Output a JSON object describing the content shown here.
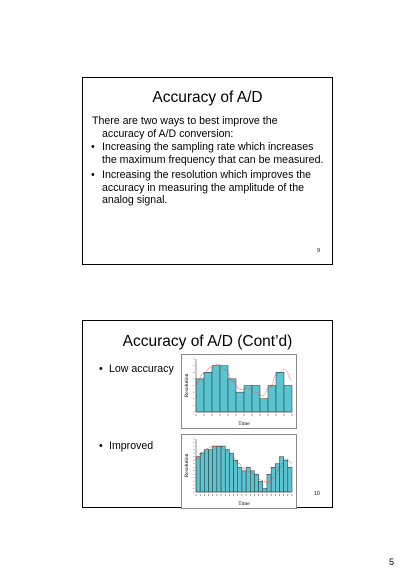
{
  "slides": [
    {
      "title": "Accuracy of A/D",
      "intro_line1": "There are two ways to best improve the",
      "intro_line2": "accuracy of A/D conversion:",
      "bullets": [
        "Increasing the sampling rate which increases the maximum frequency that can be measured.",
        "Increasing the resolution which improves the accuracy in measuring the amplitude of the analog signal."
      ],
      "number": "9"
    },
    {
      "title": "Accuracy of A/D (Cont’d)",
      "items": [
        "Low accuracy",
        "Improved"
      ],
      "number": "10"
    }
  ],
  "bullet_char": "•",
  "chart_data": [
    {
      "type": "bar",
      "xlabel": "Time",
      "ylabel": "Resolution",
      "bar_color": "#5bc4d1",
      "curve_color": "#e04040",
      "values": [
        5,
        6,
        7,
        7,
        5,
        3,
        4,
        4,
        2,
        4,
        6,
        4
      ],
      "curve": [
        4.2,
        5.8,
        6.8,
        7.2,
        6.4,
        4.6,
        3.4,
        3.6,
        3.0,
        2.4,
        3.8,
        5.8,
        6.4,
        4.8
      ],
      "ylim": [
        0,
        8
      ]
    },
    {
      "type": "bar",
      "xlabel": "Time",
      "ylabel": "Resolution",
      "bar_color": "#5bc4d1",
      "curve_color": "#e04040",
      "values": [
        10,
        11,
        12,
        12,
        13,
        13,
        13,
        12,
        11,
        9,
        7,
        6,
        7,
        6,
        5,
        3,
        1,
        5,
        7,
        8,
        10,
        9,
        7
      ],
      "curve": [
        9.5,
        11.2,
        12.4,
        13.0,
        12.8,
        11.8,
        10.2,
        8.2,
        6.6,
        5.6,
        4.6,
        3.2,
        2.6,
        4.0,
        7.0,
        9.4,
        8.2
      ],
      "ylim": [
        0,
        15
      ]
    }
  ],
  "page_number": "5"
}
